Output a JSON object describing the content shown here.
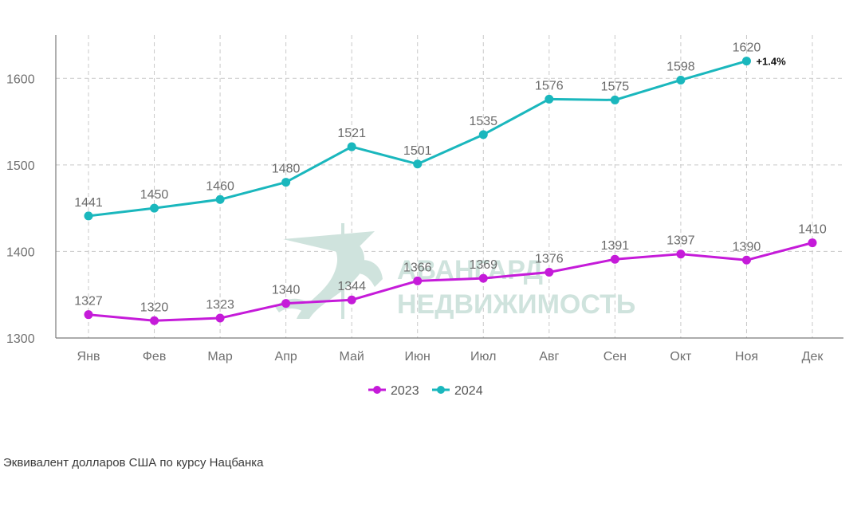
{
  "chart_data": {
    "type": "line",
    "categories": [
      "Янв",
      "Фев",
      "Мар",
      "Апр",
      "Май",
      "Июн",
      "Июл",
      "Авг",
      "Сен",
      "Окт",
      "Ноя",
      "Дек"
    ],
    "series": [
      {
        "name": "2023",
        "color": "#c51bd9",
        "values": [
          1327,
          1320,
          1323,
          1340,
          1344,
          1366,
          1369,
          1376,
          1391,
          1397,
          1390,
          1410
        ]
      },
      {
        "name": "2024",
        "color": "#1ab7bd",
        "values": [
          1441,
          1450,
          1460,
          1480,
          1521,
          1501,
          1535,
          1576,
          1575,
          1598,
          1620,
          null
        ]
      }
    ],
    "ylim": [
      1300,
      1650
    ],
    "yticks": [
      1300,
      1400,
      1500,
      1600
    ],
    "grid": true,
    "legend_position": "bottom",
    "annotation": {
      "series": "2024",
      "category": "Ноя",
      "text": "+1.4%"
    }
  },
  "watermark": {
    "line1": "АВАНГАРД",
    "line2": "НЕДВИЖИМОСТЬ",
    "color": "#cfe3dd"
  },
  "footnote": "Эквивалент долларов США по курсу Нацбанка"
}
